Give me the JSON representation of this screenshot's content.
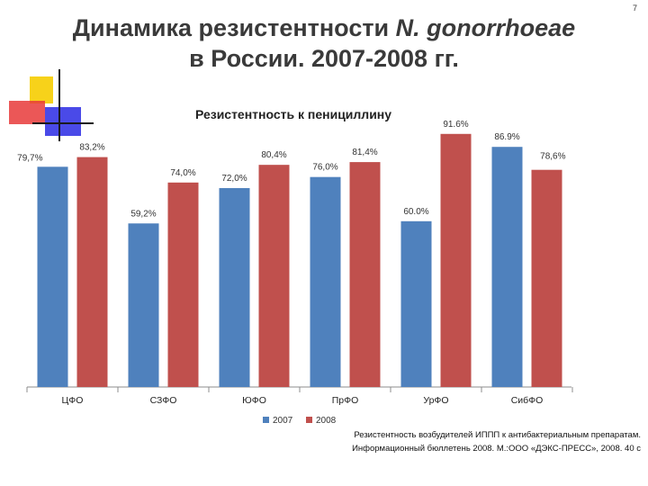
{
  "slide_number": "7",
  "title": {
    "line1_prefix": "Динамика резистентности ",
    "line1_italic": "N. gonorrhoeae",
    "line2": "в России. 2007-2008 гг."
  },
  "colors": {
    "series_2007": "#4f81bd",
    "series_2008": "#c0504d"
  },
  "chart_data": {
    "type": "bar",
    "title": "Резистентность к пенициллину",
    "categories": [
      "ЦФО",
      "СЗФО",
      "ЮФО",
      "ПрФО",
      "УрФО",
      "СибФО"
    ],
    "series": [
      {
        "name": "2007",
        "values": [
          79.7,
          59.2,
          72.0,
          76.0,
          60.0,
          86.9
        ],
        "labels": [
          "79,7%",
          "59,2%",
          "72,0%",
          "76,0%",
          "60.0%",
          "86.9%"
        ]
      },
      {
        "name": "2008",
        "values": [
          83.2,
          74.0,
          80.4,
          81.4,
          91.6,
          78.6
        ],
        "labels": [
          "83,2%",
          "74,0%",
          "80,4%",
          "81,4%",
          "91.6%",
          "78,6%"
        ]
      }
    ],
    "legend_position": "bottom",
    "grid": false
  },
  "source_note": {
    "line1": "Резистентность возбудителей ИППП к антибактериальным препаратам.",
    "line2": "Информационный бюллетень 2008. М.:ООО «ДЭКС-ПРЕСС», 2008. 40 с"
  }
}
